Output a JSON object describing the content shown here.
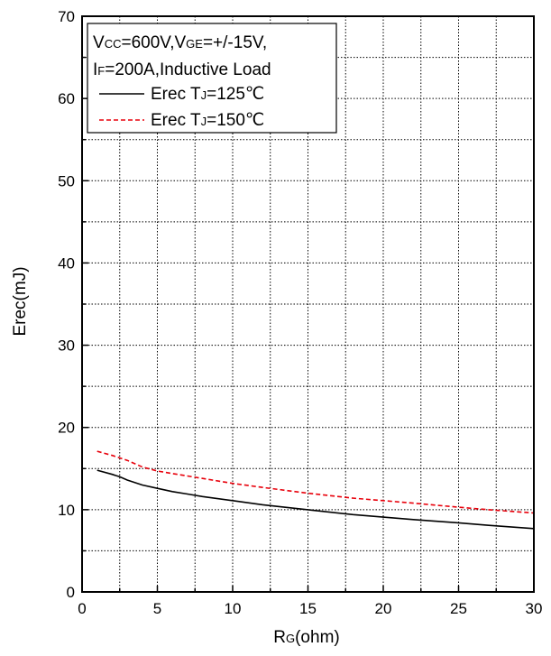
{
  "chart_data": {
    "type": "line",
    "xlabel_main": "R",
    "xlabel_sub": "G",
    "xlabel_tail": "(ohm)",
    "ylabel": "Erec(mJ)",
    "xlim": [
      0,
      30
    ],
    "ylim": [
      0,
      70
    ],
    "xticks": [
      "0",
      "5",
      "10",
      "15",
      "20",
      "25",
      "30"
    ],
    "yticks": [
      "0",
      "10",
      "20",
      "30",
      "40",
      "50",
      "60",
      "70"
    ],
    "grid": true,
    "grid_style": "dotted",
    "legend_position": "top-left",
    "conditions_line1": [
      {
        "text": "V",
        "sub": false
      },
      {
        "text": "CC",
        "sub": true
      },
      {
        "text": "=600V,V",
        "sub": false
      },
      {
        "text": "GE",
        "sub": true
      },
      {
        "text": "=+/-15V,",
        "sub": false
      }
    ],
    "conditions_line2": [
      {
        "text": "I",
        "sub": false
      },
      {
        "text": "F",
        "sub": true
      },
      {
        "text": "=200A,Inductive Load",
        "sub": false
      }
    ],
    "series": [
      {
        "name_main": "Erec T",
        "name_sub": "J",
        "name_tail": "=125℃",
        "color": "#000000",
        "dash": "solid",
        "x": [
          1,
          2,
          2.5,
          3,
          4,
          5,
          6,
          7,
          8,
          10,
          12,
          15,
          18,
          20,
          22,
          25,
          27,
          30
        ],
        "y": [
          14.8,
          14.3,
          14.0,
          13.6,
          13.0,
          12.6,
          12.2,
          11.9,
          11.6,
          11.1,
          10.6,
          10.0,
          9.4,
          9.1,
          8.8,
          8.4,
          8.1,
          7.7
        ]
      },
      {
        "name_main": "Erec T",
        "name_sub": "J",
        "name_tail": "=150℃",
        "color": "#e8000b",
        "dash": "dashed",
        "x": [
          1,
          2,
          3,
          4,
          5,
          6,
          7,
          8,
          10,
          12,
          15,
          18,
          20,
          22,
          25,
          27,
          30
        ],
        "y": [
          17.1,
          16.6,
          16.0,
          15.2,
          14.7,
          14.4,
          14.1,
          13.8,
          13.2,
          12.7,
          12.0,
          11.4,
          11.1,
          10.8,
          10.3,
          10.0,
          9.6
        ]
      }
    ]
  }
}
